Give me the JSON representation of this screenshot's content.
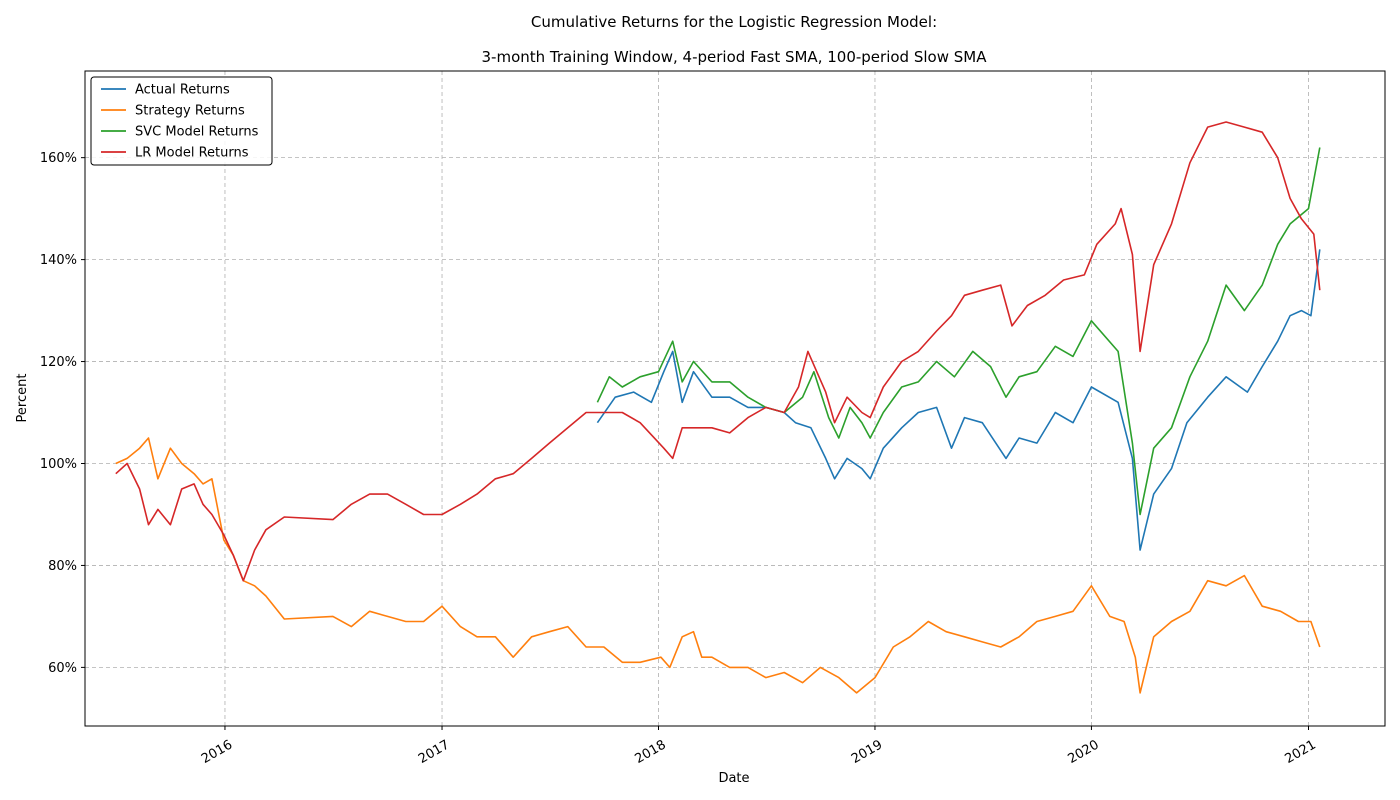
{
  "chart_data": {
    "type": "line",
    "title": "Cumulative Returns for the Logistic Regression Model:",
    "subtitle": "3-month Training Window, 4-period Fast SMA, 100-period Slow SMA",
    "xlabel": "Date",
    "ylabel": "Percent",
    "xlim": [
      "2015-05-10",
      "2021-05-10"
    ],
    "ylim": [
      48.5,
      177
    ],
    "x_ticks": [
      "2016",
      "2017",
      "2018",
      "2019",
      "2020",
      "2021"
    ],
    "y_ticks": [
      "60%",
      "80%",
      "100%",
      "120%",
      "140%",
      "160%"
    ],
    "grid": true,
    "legend_position": "top-left",
    "series": [
      {
        "name": "Actual Returns",
        "color": "#1f77b4",
        "x": [
          "2017-09-20",
          "2017-10-20",
          "2017-11-20",
          "2017-12-20",
          "2018-01-10",
          "2018-01-25",
          "2018-02-10",
          "2018-03-01",
          "2018-04-01",
          "2018-05-01",
          "2018-06-01",
          "2018-07-01",
          "2018-08-01",
          "2018-08-20",
          "2018-09-15",
          "2018-10-10",
          "2018-10-25",
          "2018-11-15",
          "2018-12-10",
          "2018-12-24",
          "2019-01-15",
          "2019-02-15",
          "2019-03-15",
          "2019-04-15",
          "2019-05-10",
          "2019-06-01",
          "2019-07-01",
          "2019-08-10",
          "2019-09-01",
          "2019-10-01",
          "2019-11-01",
          "2019-12-01",
          "2020-01-01",
          "2020-02-15",
          "2020-03-10",
          "2020-03-23",
          "2020-04-15",
          "2020-05-15",
          "2020-06-10",
          "2020-07-15",
          "2020-08-15",
          "2020-09-20",
          "2020-10-15",
          "2020-11-10",
          "2020-12-01",
          "2020-12-20",
          "2021-01-05",
          "2021-01-20"
        ],
        "values": [
          108,
          113,
          114,
          112,
          118,
          122,
          112,
          118,
          113,
          113,
          111,
          111,
          110,
          108,
          107,
          101,
          97,
          101,
          99,
          97,
          103,
          107,
          110,
          111,
          103,
          109,
          108,
          101,
          105,
          104,
          110,
          108,
          115,
          112,
          101,
          83,
          94,
          99,
          108,
          113,
          117,
          114,
          119,
          124,
          129,
          130,
          129,
          142
        ]
      },
      {
        "name": "Strategy Returns",
        "color": "#ff7f0e",
        "x": [
          "2015-07-01",
          "2015-07-20",
          "2015-08-10",
          "2015-08-25",
          "2015-09-10",
          "2015-10-01",
          "2015-10-20",
          "2015-11-10",
          "2015-11-25",
          "2015-12-10",
          "2015-12-30",
          "2016-01-15",
          "2016-02-01",
          "2016-02-20",
          "2016-03-10",
          "2016-04-10",
          "2016-07-01",
          "2016-08-01",
          "2016-09-01",
          "2016-10-01",
          "2016-11-01",
          "2016-12-01",
          "2017-01-01",
          "2017-02-01",
          "2017-03-01",
          "2017-04-01",
          "2017-05-01",
          "2017-06-01",
          "2017-07-01",
          "2017-08-01",
          "2017-09-01",
          "2017-10-01",
          "2017-11-01",
          "2017-12-01",
          "2018-01-05",
          "2018-01-20",
          "2018-02-10",
          "2018-03-01",
          "2018-03-15",
          "2018-04-01",
          "2018-05-01",
          "2018-06-01",
          "2018-07-01",
          "2018-08-01",
          "2018-09-01",
          "2018-10-01",
          "2018-11-01",
          "2018-12-01",
          "2019-01-01",
          "2019-02-01",
          "2019-03-01",
          "2019-04-01",
          "2019-05-01",
          "2019-06-01",
          "2019-07-01",
          "2019-08-01",
          "2019-09-01",
          "2019-10-01",
          "2019-11-01",
          "2019-12-01",
          "2020-01-01",
          "2020-02-01",
          "2020-02-25",
          "2020-03-15",
          "2020-03-23",
          "2020-04-15",
          "2020-05-15",
          "2020-06-15",
          "2020-07-15",
          "2020-08-15",
          "2020-09-15",
          "2020-10-15",
          "2020-11-15",
          "2020-12-15",
          "2021-01-05",
          "2021-01-20"
        ],
        "values": [
          100,
          101,
          103,
          105,
          97,
          103,
          100,
          98,
          96,
          97,
          85,
          82,
          77,
          76,
          74,
          69.5,
          70,
          68,
          71,
          70,
          69,
          69,
          72,
          68,
          66,
          66,
          62,
          66,
          67,
          68,
          64,
          64,
          61,
          61,
          62,
          60,
          66,
          67,
          62,
          62,
          60,
          60,
          58,
          59,
          57,
          60,
          58,
          55,
          58,
          64,
          66,
          69,
          67,
          66,
          65,
          64,
          66,
          69,
          70,
          71,
          76,
          70,
          69,
          62,
          55,
          66,
          69,
          71,
          77,
          76,
          78,
          72,
          71,
          69,
          69,
          64
        ]
      },
      {
        "name": "SVC Model Returns",
        "color": "#2ca02c",
        "x": [
          "2017-09-20",
          "2017-10-10",
          "2017-11-01",
          "2017-12-01",
          "2018-01-01",
          "2018-01-25",
          "2018-02-10",
          "2018-03-01",
          "2018-04-01",
          "2018-05-01",
          "2018-06-01",
          "2018-07-01",
          "2018-08-01",
          "2018-09-01",
          "2018-09-20",
          "2018-10-15",
          "2018-11-01",
          "2018-11-20",
          "2018-12-10",
          "2018-12-24",
          "2019-01-15",
          "2019-02-15",
          "2019-03-15",
          "2019-04-15",
          "2019-05-15",
          "2019-06-15",
          "2019-07-15",
          "2019-08-10",
          "2019-09-01",
          "2019-10-01",
          "2019-11-01",
          "2019-12-01",
          "2020-01-01",
          "2020-02-15",
          "2020-03-10",
          "2020-03-23",
          "2020-04-15",
          "2020-05-15",
          "2020-06-15",
          "2020-07-15",
          "2020-08-15",
          "2020-09-15",
          "2020-10-15",
          "2020-11-10",
          "2020-12-01",
          "2021-01-01",
          "2021-01-20"
        ],
        "values": [
          112,
          117,
          115,
          117,
          118,
          124,
          116,
          120,
          116,
          116,
          113,
          111,
          110,
          113,
          118,
          109,
          105,
          111,
          108,
          105,
          110,
          115,
          116,
          120,
          117,
          122,
          119,
          113,
          117,
          118,
          123,
          121,
          128,
          122,
          104,
          90,
          103,
          107,
          117,
          124,
          135,
          130,
          135,
          143,
          147,
          150,
          162
        ]
      },
      {
        "name": "LR Model Returns",
        "color": "#d62728",
        "x": [
          "2015-07-01",
          "2015-07-20",
          "2015-08-10",
          "2015-08-25",
          "2015-09-10",
          "2015-10-01",
          "2015-10-20",
          "2015-11-10",
          "2015-11-25",
          "2015-12-10",
          "2015-12-30",
          "2016-01-15",
          "2016-02-01",
          "2016-02-20",
          "2016-03-10",
          "2016-04-10",
          "2016-07-01",
          "2016-08-01",
          "2016-09-01",
          "2016-10-01",
          "2016-11-01",
          "2016-12-01",
          "2017-01-01",
          "2017-02-01",
          "2017-03-01",
          "2017-04-01",
          "2017-05-01",
          "2017-06-01",
          "2017-07-01",
          "2017-08-01",
          "2017-09-01",
          "2017-10-01",
          "2017-11-01",
          "2017-12-01",
          "2018-01-10",
          "2018-01-25",
          "2018-02-10",
          "2018-03-01",
          "2018-04-01",
          "2018-05-01",
          "2018-06-01",
          "2018-07-01",
          "2018-08-01",
          "2018-08-25",
          "2018-09-10",
          "2018-10-10",
          "2018-10-25",
          "2018-11-15",
          "2018-12-10",
          "2018-12-24",
          "2019-01-15",
          "2019-02-15",
          "2019-03-15",
          "2019-04-15",
          "2019-05-10",
          "2019-06-01",
          "2019-07-01",
          "2019-08-01",
          "2019-08-20",
          "2019-09-15",
          "2019-10-15",
          "2019-11-15",
          "2019-12-20",
          "2020-01-10",
          "2020-02-10",
          "2020-02-20",
          "2020-03-10",
          "2020-03-23",
          "2020-04-15",
          "2020-05-15",
          "2020-06-15",
          "2020-07-15",
          "2020-08-15",
          "2020-09-15",
          "2020-10-15",
          "2020-11-10",
          "2020-12-01",
          "2020-12-20",
          "2021-01-10",
          "2021-01-20"
        ],
        "values": [
          98,
          100,
          95,
          88,
          91,
          88,
          95,
          96,
          92,
          90,
          86,
          82,
          77,
          83,
          87,
          89.5,
          89,
          92,
          94,
          94,
          92,
          90,
          90,
          92,
          94,
          97,
          98,
          101,
          104,
          107,
          110,
          110,
          110,
          108,
          103,
          101,
          107,
          107,
          107,
          106,
          109,
          111,
          110,
          115,
          122,
          114,
          108,
          113,
          110,
          109,
          115,
          120,
          122,
          126,
          129,
          133,
          134,
          135,
          127,
          131,
          133,
          136,
          137,
          143,
          147,
          150,
          141,
          122,
          139,
          147,
          159,
          166,
          167,
          166,
          165,
          160,
          152,
          148,
          145,
          134
        ]
      }
    ]
  }
}
